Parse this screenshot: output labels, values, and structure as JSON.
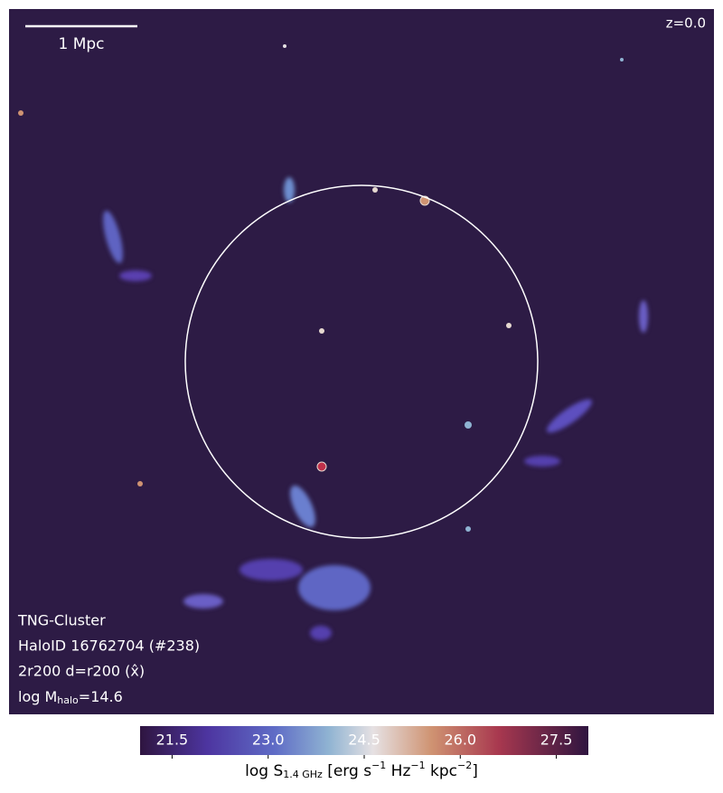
{
  "redshift": "z=0.0",
  "scale_bar": "1 Mpc",
  "info": {
    "simulation": "TNG-Cluster",
    "halo": "HaloID 16762704 (#238)",
    "projection": "2r200 d=r200 (x̂)",
    "mass": [
      "log M",
      "halo",
      "=14.6"
    ]
  },
  "colorbar": {
    "lim": [
      21,
      28
    ],
    "ticks": [
      21.5,
      {
        "value": 23,
        "label": "23.0"
      },
      24.5,
      {
        "value": 26,
        "label": "26.0"
      },
      27.5
    ],
    "label": [
      "log S",
      "1.4 GHz",
      " [erg s",
      "−1",
      " Hz",
      "−1",
      " kpc",
      "−2",
      "]"
    ]
  }
}
